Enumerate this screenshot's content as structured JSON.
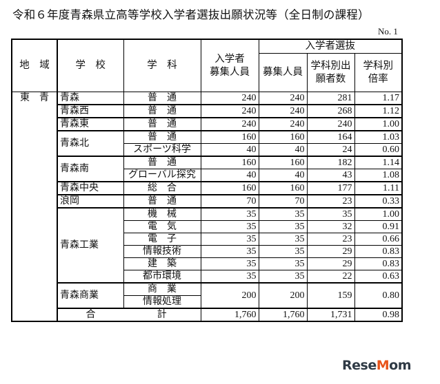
{
  "title": "令和６年度青森県立高等学校入学者選抜出願状況等（全日制の課程）",
  "page_no": "No. 1",
  "headers": {
    "region": "地　域",
    "school": "学　校",
    "subject": "学　科",
    "quota": [
      "入学者",
      "募集人員"
    ],
    "selection": "入学者選抜",
    "sel_quota": "募集人員",
    "applicants": [
      "学科別出",
      "願者数"
    ],
    "ratio": [
      "学科別",
      "倍率"
    ]
  },
  "region": "東　青",
  "schools": [
    {
      "name": "青森",
      "departments": [
        {
          "name": "普　通",
          "quota": "240",
          "sel_quota": "240",
          "applicants": "281",
          "ratio": "1.17"
        }
      ]
    },
    {
      "name": "青森西",
      "departments": [
        {
          "name": "普　通",
          "quota": "240",
          "sel_quota": "240",
          "applicants": "268",
          "ratio": "1.12"
        }
      ]
    },
    {
      "name": "青森東",
      "departments": [
        {
          "name": "普　通",
          "quota": "240",
          "sel_quota": "240",
          "applicants": "240",
          "ratio": "1.00"
        }
      ]
    },
    {
      "name": "青森北",
      "departments": [
        {
          "name": "普　通",
          "quota": "160",
          "sel_quota": "160",
          "applicants": "164",
          "ratio": "1.03"
        },
        {
          "name": "スポーツ科学",
          "quota": "40",
          "sel_quota": "40",
          "applicants": "24",
          "ratio": "0.60"
        }
      ]
    },
    {
      "name": "青森南",
      "departments": [
        {
          "name": "普　通",
          "quota": "160",
          "sel_quota": "160",
          "applicants": "182",
          "ratio": "1.14"
        },
        {
          "name": "グローバル探究",
          "quota": "40",
          "sel_quota": "40",
          "applicants": "43",
          "ratio": "1.08"
        }
      ]
    },
    {
      "name": "青森中央",
      "departments": [
        {
          "name": "総　合",
          "quota": "160",
          "sel_quota": "160",
          "applicants": "177",
          "ratio": "1.11"
        }
      ]
    },
    {
      "name": "浪岡",
      "departments": [
        {
          "name": "普　通",
          "quota": "70",
          "sel_quota": "70",
          "applicants": "23",
          "ratio": "0.33"
        }
      ]
    },
    {
      "name": "青森工業",
      "departments": [
        {
          "name": "機　械",
          "quota": "35",
          "sel_quota": "35",
          "applicants": "35",
          "ratio": "1.00"
        },
        {
          "name": "電　気",
          "quota": "35",
          "sel_quota": "35",
          "applicants": "32",
          "ratio": "0.91"
        },
        {
          "name": "電　子",
          "quota": "35",
          "sel_quota": "35",
          "applicants": "23",
          "ratio": "0.66"
        },
        {
          "name": "情報技術",
          "quota": "35",
          "sel_quota": "35",
          "applicants": "29",
          "ratio": "0.83"
        },
        {
          "name": "建　築",
          "quota": "35",
          "sel_quota": "35",
          "applicants": "29",
          "ratio": "0.83"
        },
        {
          "name": "都市環境",
          "quota": "35",
          "sel_quota": "35",
          "applicants": "22",
          "ratio": "0.63"
        }
      ]
    },
    {
      "name": "青森商業",
      "merged": {
        "quota": "200",
        "sel_quota": "200",
        "applicants": "159",
        "ratio": "0.80"
      },
      "departments": [
        {
          "name": "商　業"
        },
        {
          "name": "情報処理"
        }
      ]
    }
  ],
  "total": {
    "label_a": "合",
    "label_b": "計",
    "quota": "1,760",
    "sel_quota": "1,760",
    "applicants": "1,731",
    "ratio": "0.98"
  },
  "logo": "ReseMom"
}
